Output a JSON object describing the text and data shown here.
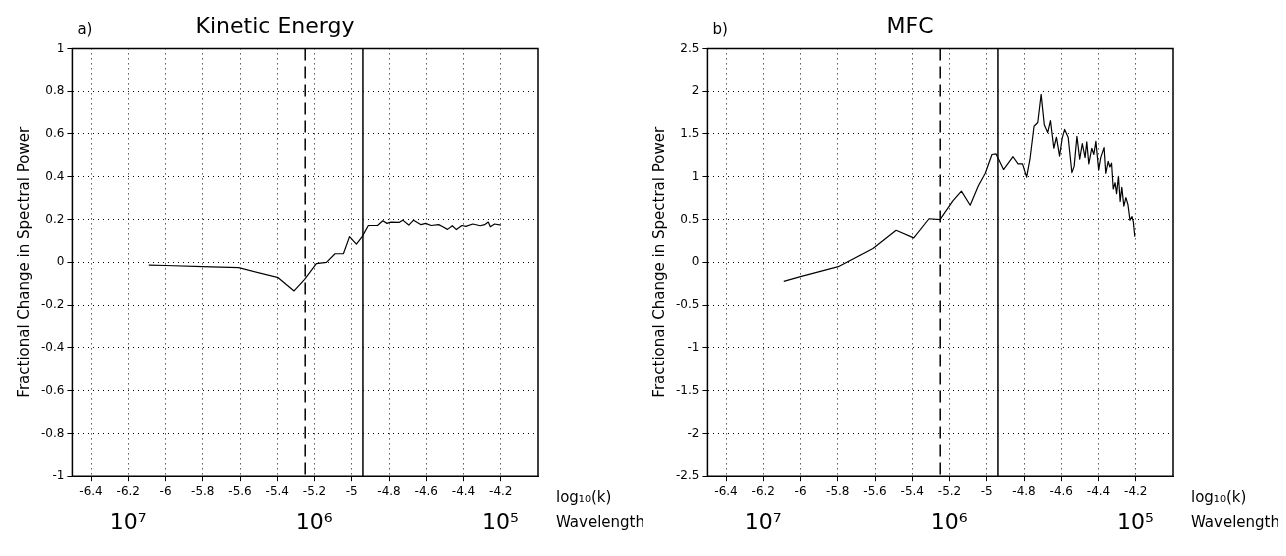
{
  "chart_data": [
    {
      "type": "line",
      "title": "Kinetic Energy",
      "annotations": [
        "a)"
      ],
      "ylabel": "Fractional Change in Spectral Power",
      "xlabel": "log₁₀(k)",
      "x2label": "Wavelength",
      "x": [
        -6.09,
        -6.0,
        -5.8,
        -5.607,
        -5.395,
        -5.31,
        -5.253,
        -5.19,
        -5.136,
        -5.09,
        -5.045,
        -5.012,
        -4.975,
        -4.944,
        -4.911,
        -4.862,
        -4.833,
        -4.811,
        -4.79,
        -4.744,
        -4.726,
        -4.694,
        -4.668,
        -4.628,
        -4.603,
        -4.574,
        -4.533,
        -4.511,
        -4.486,
        -4.46,
        -4.438,
        -4.409,
        -4.387,
        -4.35,
        -4.31,
        -4.287,
        -4.267,
        -4.256,
        -4.233,
        -4.2
      ],
      "values": [
        -0.013,
        -0.015,
        -0.02,
        -0.025,
        -0.072,
        -0.134,
        -0.08,
        -0.006,
        0.0,
        0.04,
        0.04,
        0.12,
        0.085,
        0.12,
        0.172,
        0.172,
        0.194,
        0.182,
        0.188,
        0.187,
        0.197,
        0.174,
        0.197,
        0.176,
        0.182,
        0.172,
        0.176,
        0.166,
        0.154,
        0.171,
        0.153,
        0.172,
        0.168,
        0.179,
        0.171,
        0.176,
        0.188,
        0.166,
        0.179,
        0.174
      ],
      "color": "#000000",
      "marker": "none",
      "line_style": "solid",
      "legend": false,
      "grid": true,
      "xlim": [
        -6.5,
        -4.0
      ],
      "xticks": [
        -6.4,
        -6.2,
        -6,
        -5.8,
        -5.6,
        -5.4,
        -5.2,
        -5,
        -4.8,
        -4.6,
        -4.4,
        -4.2
      ],
      "ylim": [
        -1,
        1
      ],
      "yticks": [
        -1,
        -0.8,
        -0.6,
        -0.4,
        -0.2,
        0,
        0.2,
        0.4,
        0.6,
        0.8,
        1
      ],
      "x2lim": [
        19900000,
        62800
      ],
      "x2ticks": [
        {
          "value": 10000000,
          "label": "10⁷"
        },
        {
          "value": 1000000,
          "label": "10⁶"
        },
        {
          "value": 100000,
          "label": "10⁵"
        }
      ],
      "log": "x2",
      "ref_lines": [
        {
          "axis": "x",
          "value": -5.25,
          "line_style": "dashed",
          "color": "#000000"
        },
        {
          "axis": "x",
          "value": -4.94,
          "line_style": "solid",
          "color": "#000000"
        }
      ]
    },
    {
      "type": "line",
      "title": "MFC",
      "annotations": [
        "b)"
      ],
      "ylabel": "Fractional Change in Spectral Power",
      "xlabel": "log₁₀(k)",
      "x2label": "Wavelength",
      "x": [
        -6.09,
        -6.0,
        -5.797,
        -5.611,
        -5.487,
        -5.392,
        -5.31,
        -5.251,
        -5.182,
        -5.136,
        -5.089,
        -5.045,
        -5.008,
        -4.972,
        -4.95,
        -4.91,
        -4.859,
        -4.832,
        -4.808,
        -4.786,
        -4.768,
        -4.746,
        -4.726,
        -4.708,
        -4.691,
        -4.673,
        -4.658,
        -4.64,
        -4.626,
        -4.609,
        -4.595,
        -4.582,
        -4.563,
        -4.543,
        -4.531,
        -4.516,
        -4.501,
        -4.487,
        -4.472,
        -4.463,
        -4.452,
        -4.436,
        -4.425,
        -4.414,
        -4.399,
        -4.388,
        -4.37,
        -4.361,
        -4.348,
        -4.339,
        -4.33,
        -4.321,
        -4.311,
        -4.303,
        -4.293,
        -4.284,
        -4.275,
        -4.264,
        -4.253,
        -4.242,
        -4.231,
        -4.22,
        -4.213,
        -4.205
      ],
      "values": [
        -0.223,
        -0.168,
        -0.051,
        0.161,
        0.374,
        0.286,
        0.509,
        0.498,
        0.718,
        0.832,
        0.667,
        0.894,
        1.04,
        1.26,
        1.267,
        1.084,
        1.234,
        1.15,
        1.15,
        0.996,
        1.205,
        1.59,
        1.634,
        1.963,
        1.608,
        1.516,
        1.656,
        1.333,
        1.462,
        1.242,
        1.451,
        1.553,
        1.462,
        1.048,
        1.121,
        1.473,
        1.205,
        1.388,
        1.223,
        1.407,
        1.15,
        1.333,
        1.26,
        1.414,
        1.077,
        1.223,
        1.34,
        1.04,
        1.179,
        1.114,
        1.158,
        0.857,
        0.93,
        0.802,
        1.004,
        0.711,
        0.875,
        0.656,
        0.755,
        0.674,
        0.491,
        0.535,
        0.473,
        0.3
      ],
      "color": "#000000",
      "marker": "none",
      "line_style": "solid",
      "legend": false,
      "grid": true,
      "xlim": [
        -6.5,
        -4.0
      ],
      "xticks": [
        -6.4,
        -6.2,
        -6,
        -5.8,
        -5.6,
        -5.4,
        -5.2,
        -5,
        -4.8,
        -4.6,
        -4.4,
        -4.2
      ],
      "ylim": [
        -2.5,
        2.5
      ],
      "yticks": [
        -2.5,
        -2,
        -1.5,
        -1,
        -0.5,
        0,
        0.5,
        1,
        1.5,
        2,
        2.5
      ],
      "x2lim": [
        19900000,
        62800
      ],
      "x2ticks": [
        {
          "value": 10000000,
          "label": "10⁷"
        },
        {
          "value": 1000000,
          "label": "10⁶"
        },
        {
          "value": 100000,
          "label": "10⁵"
        }
      ],
      "log": "x2",
      "ref_lines": [
        {
          "axis": "x",
          "value": -5.25,
          "line_style": "dashed",
          "color": "#000000"
        },
        {
          "axis": "x",
          "value": -4.94,
          "line_style": "solid",
          "color": "#000000"
        }
      ]
    }
  ]
}
